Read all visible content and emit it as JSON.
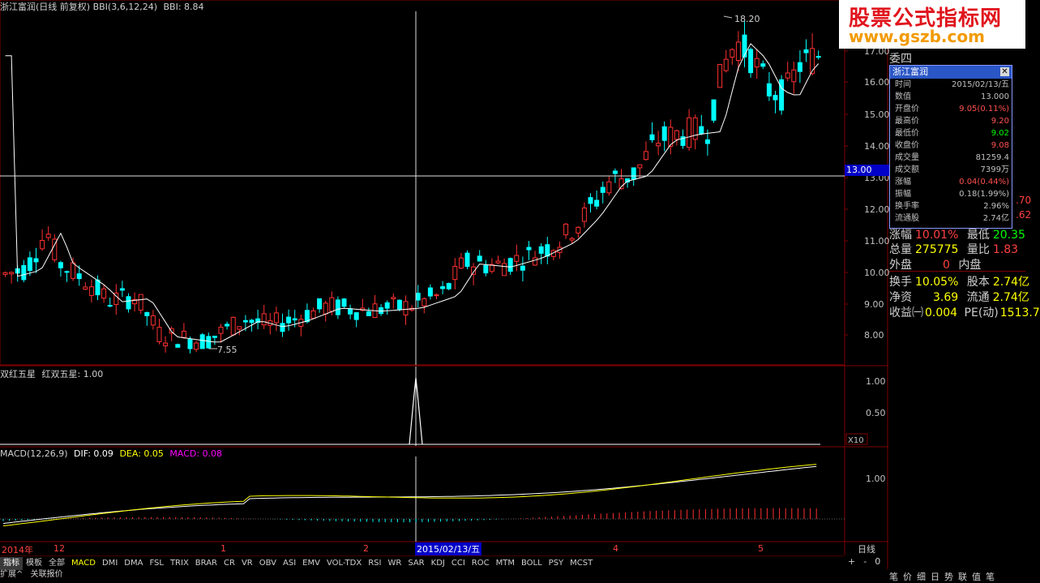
{
  "header": {
    "title": "浙江富润(日线 前复权)",
    "bbi_label": "BBI(3,6,12,24)",
    "bbi_value": "BBI: 8.84"
  },
  "price_axis": [
    "17.00",
    "16.00",
    "15.00",
    "14.00",
    "13.00",
    "12.00",
    "11.00",
    "10.00",
    "9.00",
    "8.00"
  ],
  "crosshair_price": "13.00",
  "annotations": {
    "high": "18.20",
    "low": "7.55"
  },
  "panel2": {
    "title": "双红五星",
    "value_label": "红双五星: 1.00",
    "axis": [
      "1.00",
      "0.50"
    ],
    "corner": "X10"
  },
  "panel3": {
    "title": "MACD(12,26,9)",
    "dif": "DIF: 0.09",
    "dea": "DEA: 0.05",
    "macd": "MACD: 0.08",
    "axis": [
      "1.00"
    ],
    "colors": {
      "dif": "#ffffff",
      "dea": "#ffff00",
      "macd": "#ff00ff"
    }
  },
  "date_axis": {
    "labels": [
      "2014年",
      "12",
      "1",
      "2",
      "4",
      "5"
    ],
    "highlight": "2015/02/13/五",
    "period": "日线"
  },
  "tabs": [
    "指标",
    "模板",
    "全部",
    "MACD",
    "DMI",
    "DMA",
    "FSL",
    "TRIX",
    "BRAR",
    "CR",
    "VR",
    "OBV",
    "ASI",
    "EMV",
    "VOL-TDX",
    "RSI",
    "WR",
    "SAR",
    "KDJ",
    "CCI",
    "ROC",
    "MTM",
    "BOLL",
    "PSY",
    "MCST"
  ],
  "tab_right": [
    "+",
    "-",
    "0"
  ],
  "bottom_row": [
    "扩展^",
    "关联报价"
  ],
  "right_side_top": "委四",
  "info_popup": {
    "title": "浙江富润",
    "rows": [
      {
        "k": "时间",
        "v": "2015/02/13/五",
        "c": "#c0c0c0"
      },
      {
        "k": "数值",
        "v": "13.000",
        "c": "#c0c0c0"
      },
      {
        "k": "开盘价",
        "v": "9.05(0.11%)",
        "c": "#ff5050"
      },
      {
        "k": "最高价",
        "v": "9.20",
        "c": "#ff5050"
      },
      {
        "k": "最低价",
        "v": "9.02",
        "c": "#00ff00"
      },
      {
        "k": "收盘价",
        "v": "9.08",
        "c": "#ff5050"
      },
      {
        "k": "成交量",
        "v": "81259.4",
        "c": "#c0c0c0"
      },
      {
        "k": "成交额",
        "v": "7399万",
        "c": "#c0c0c0"
      },
      {
        "k": "涨幅",
        "v": "0.04(0.44%)",
        "c": "#ff5050"
      },
      {
        "k": "振幅",
        "v": "0.18(1.99%)",
        "c": "#c0c0c0"
      },
      {
        "k": "换手率",
        "v": "2.96%",
        "c": "#c0c0c0"
      },
      {
        "k": "流通股",
        "v": "2.74亿",
        "c": "#c0c0c0"
      }
    ]
  },
  "quote_panel": {
    "r1": {
      "a": "涨幅",
      "av": "10.01%",
      "b": "最低",
      "bv": "20.35"
    },
    "r2": {
      "a": "总量",
      "av": "275775",
      "b": "量比",
      "bv": "1.83"
    },
    "r3": {
      "a": "外盘",
      "av": "0",
      "b": "内盘",
      "bv": ""
    },
    "r4": {
      "a": "换手",
      "av": "10.05%",
      "b": "股本",
      "bv": "2.74亿"
    },
    "r5": {
      "a": "净资",
      "av": "3.69",
      "b": "流通",
      "bv": "2.74亿"
    },
    "r6": {
      "a": "收益㈠",
      "av": "0.004",
      "b": "PE(动)",
      "bv": "1513.7"
    },
    "side_vals": [
      ".70",
      ".62"
    ]
  },
  "bottom_right_tabs": [
    "笔",
    "价",
    "细",
    "日",
    "势",
    "联",
    "值",
    "笔"
  ],
  "logo": {
    "line1": "股票公式指标网",
    "line2": "www.gszb.com"
  },
  "colors": {
    "up": "#ff3030",
    "down": "#00ffff",
    "ma": "#ffffff",
    "grid": "#800000",
    "crosshair_bg": "#0000c8"
  }
}
